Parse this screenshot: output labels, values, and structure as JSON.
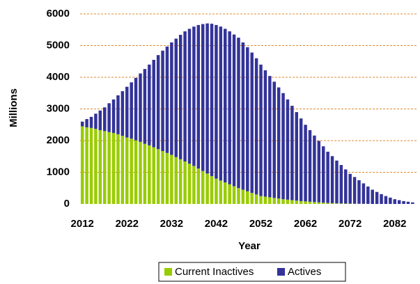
{
  "chart_data": {
    "type": "stacked_bar",
    "y_label": "Millions",
    "x_label": "Year",
    "x": [
      2012,
      2013,
      2014,
      2015,
      2016,
      2017,
      2018,
      2019,
      2020,
      2021,
      2022,
      2023,
      2024,
      2025,
      2026,
      2027,
      2028,
      2029,
      2030,
      2031,
      2032,
      2033,
      2034,
      2035,
      2036,
      2037,
      2038,
      2039,
      2040,
      2041,
      2042,
      2043,
      2044,
      2045,
      2046,
      2047,
      2048,
      2049,
      2050,
      2051,
      2052,
      2053,
      2054,
      2055,
      2056,
      2057,
      2058,
      2059,
      2060,
      2061,
      2062,
      2063,
      2064,
      2065,
      2066,
      2067,
      2068,
      2069,
      2070,
      2071,
      2072,
      2073,
      2074,
      2075,
      2076,
      2077,
      2078,
      2079,
      2080,
      2081,
      2082,
      2083,
      2084,
      2085,
      2086
    ],
    "series": [
      {
        "name": "Current Inactives",
        "color": "#99cc00",
        "values": [
          2450,
          2420,
          2400,
          2370,
          2330,
          2300,
          2270,
          2240,
          2200,
          2150,
          2100,
          2060,
          2010,
          1960,
          1900,
          1850,
          1790,
          1730,
          1670,
          1610,
          1550,
          1480,
          1410,
          1340,
          1270,
          1200,
          1120,
          1040,
          960,
          880,
          800,
          740,
          680,
          620,
          560,
          500,
          450,
          400,
          350,
          300,
          250,
          230,
          210,
          190,
          170,
          150,
          135,
          120,
          105,
          90,
          80,
          70,
          60,
          50,
          40,
          30,
          25,
          20,
          15,
          12,
          10,
          8,
          6,
          4,
          2,
          0,
          0,
          0,
          0,
          0,
          0,
          0,
          0,
          0,
          0
        ]
      },
      {
        "name": "Actives",
        "color": "#333399",
        "values": [
          150,
          260,
          350,
          480,
          620,
          750,
          910,
          1060,
          1230,
          1410,
          1600,
          1780,
          1970,
          2160,
          2360,
          2550,
          2760,
          2970,
          3170,
          3360,
          3550,
          3740,
          3930,
          4110,
          4260,
          4400,
          4530,
          4640,
          4740,
          4810,
          4850,
          4860,
          4850,
          4830,
          4790,
          4750,
          4650,
          4550,
          4430,
          4300,
          4150,
          3990,
          3830,
          3670,
          3510,
          3350,
          3165,
          2980,
          2795,
          2610,
          2420,
          2260,
          2100,
          1940,
          1780,
          1620,
          1485,
          1350,
          1215,
          1078,
          940,
          842,
          744,
          646,
          548,
          450,
          380,
          310,
          250,
          200,
          150,
          120,
          90,
          70,
          50
        ]
      }
    ],
    "xlim": [
      2011.5,
      2087.5
    ],
    "xticks": [
      2012,
      2022,
      2032,
      2042,
      2052,
      2062,
      2072,
      2082
    ],
    "ylim": [
      0,
      6000
    ],
    "yticks": [
      0,
      1000,
      2000,
      3000,
      4000,
      5000,
      6000
    ],
    "grid": true,
    "legend": "bottom"
  }
}
